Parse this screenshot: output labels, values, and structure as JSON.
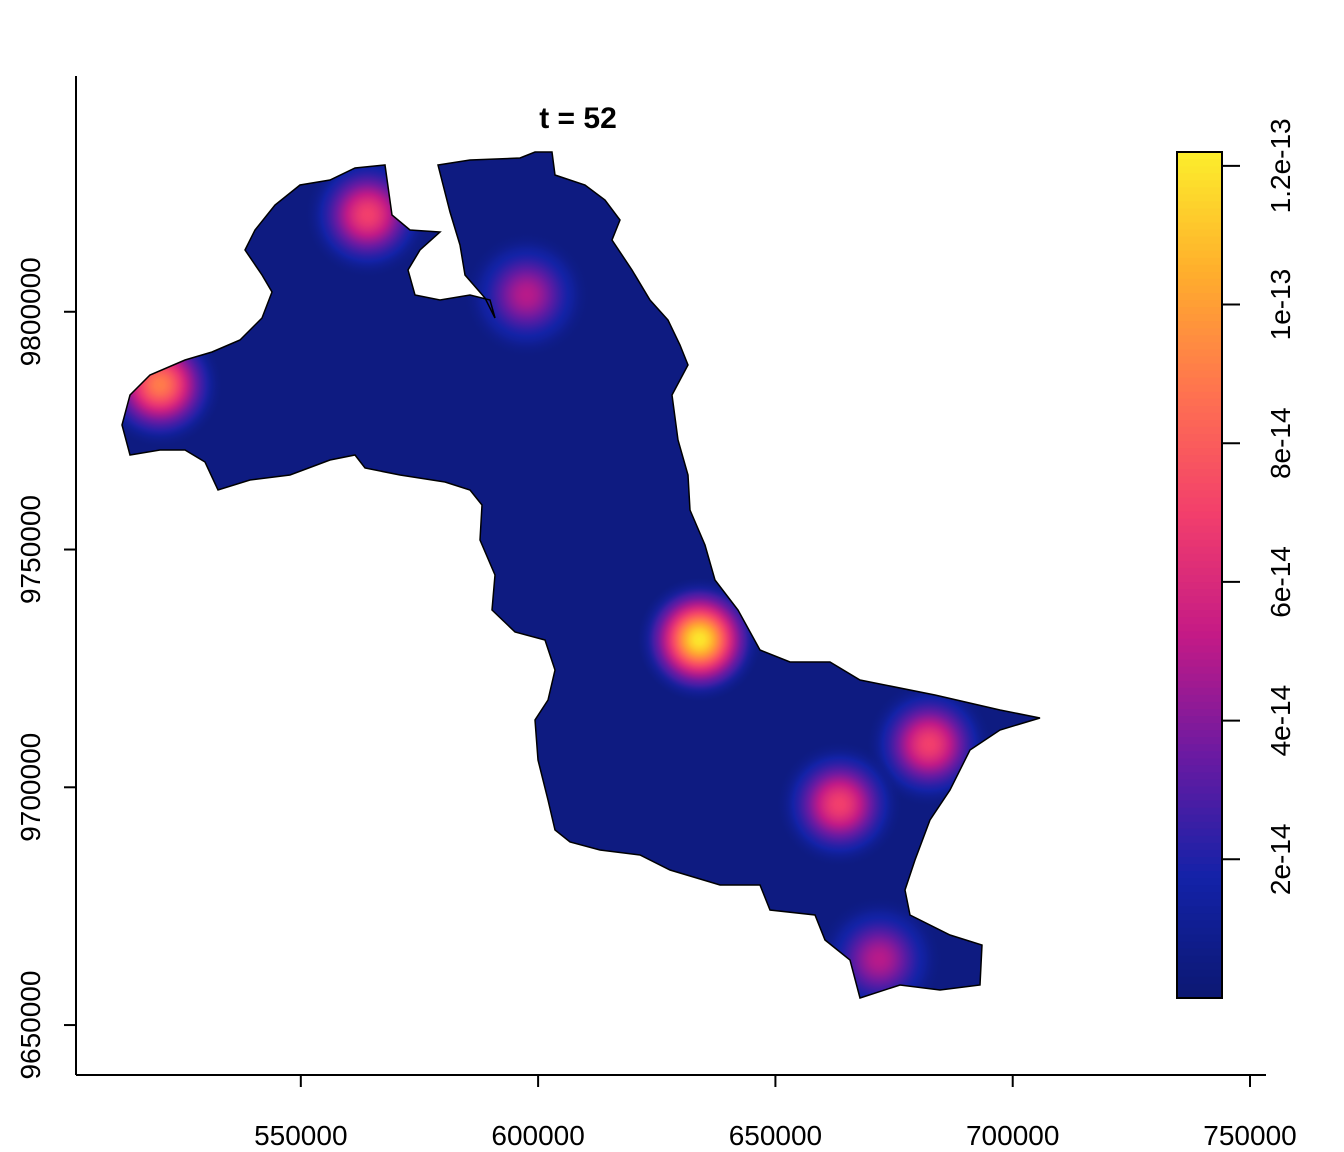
{
  "chart_data": {
    "type": "raster",
    "title": "t = 52",
    "xlim": [
      502632,
      753368
    ],
    "ylim": [
      9639496,
      9849580
    ],
    "xticks": [
      550000,
      600000,
      650000,
      700000,
      750000
    ],
    "yticks": [
      9650000,
      9700000,
      9750000,
      9800000
    ],
    "zlim": [
      0,
      1.22e-13
    ],
    "zticks": [
      2e-14,
      4e-14,
      6e-14,
      8e-14,
      1e-13,
      1.2e-13
    ],
    "colors": [
      "#0c1872",
      "#1322a8",
      "#6a1aa2",
      "#c41a86",
      "#f23e6c",
      "#ff7250",
      "#ffae2c",
      "#fcee2c"
    ],
    "base": 5e-15,
    "hotspots": {
      "x": [
        564100,
        597600,
        520300,
        634000,
        682400,
        663500,
        671900
      ],
      "y": [
        9820380,
        9803570,
        9784660,
        9731090,
        9709030,
        9696430,
        9663870
      ],
      "values": [
        7e-14,
        5e-14,
        9e-14,
        1.2e-13,
        7e-14,
        7e-14,
        5e-14
      ]
    }
  }
}
